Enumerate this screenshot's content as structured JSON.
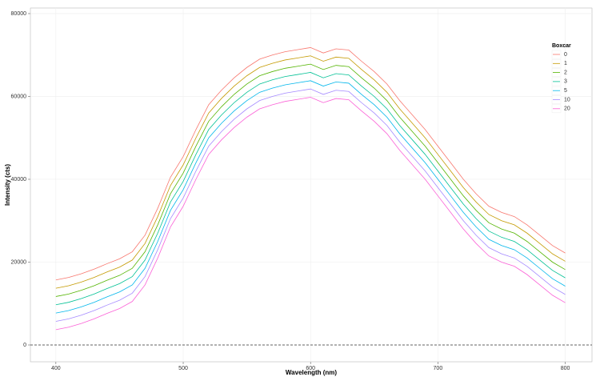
{
  "chart_data": {
    "type": "line",
    "x_label": "Wavelength (nm)",
    "y_label": "Intensity (cts)",
    "legend_title": "Boxcar",
    "x": [
      400,
      410,
      420,
      430,
      440,
      450,
      460,
      470,
      480,
      490,
      500,
      510,
      520,
      530,
      540,
      550,
      560,
      570,
      580,
      590,
      600,
      610,
      620,
      630,
      640,
      650,
      660,
      670,
      680,
      690,
      700,
      710,
      720,
      730,
      740,
      750,
      760,
      770,
      780,
      790,
      800
    ],
    "series": [
      {
        "name": "0",
        "color": "#F8766D",
        "values": [
          15700,
          16300,
          17200,
          18300,
          19600,
          20800,
          22500,
          26500,
          33000,
          40500,
          45500,
          52000,
          58000,
          61500,
          64500,
          67000,
          69000,
          70000,
          70800,
          71300,
          71800,
          70500,
          71500,
          71200,
          68500,
          66000,
          63000,
          59000,
          55500,
          52000,
          48000,
          44000,
          40000,
          36500,
          33500,
          32000,
          31000,
          29000,
          26500,
          24000,
          22200
        ]
      },
      {
        "name": "1",
        "color": "#C49A00",
        "values": [
          13700,
          14300,
          15200,
          16300,
          17600,
          18800,
          20500,
          24500,
          31000,
          38500,
          43500,
          50000,
          56000,
          59500,
          62500,
          65000,
          67000,
          68000,
          68800,
          69300,
          69800,
          68500,
          69500,
          69200,
          66500,
          64000,
          61000,
          57000,
          53500,
          50000,
          46000,
          42000,
          38000,
          34500,
          31500,
          30000,
          29000,
          27000,
          24500,
          22000,
          20200
        ]
      },
      {
        "name": "2",
        "color": "#53B400",
        "values": [
          11700,
          12300,
          13200,
          14300,
          15600,
          16800,
          18500,
          22500,
          29000,
          36500,
          41500,
          48000,
          54000,
          57500,
          60500,
          63000,
          65000,
          66000,
          66800,
          67300,
          67800,
          66500,
          67500,
          67200,
          64500,
          62000,
          59000,
          55000,
          51500,
          48000,
          44000,
          40000,
          36000,
          32500,
          29500,
          28000,
          27000,
          25000,
          22500,
          20000,
          18200
        ]
      },
      {
        "name": "3",
        "color": "#00C094",
        "values": [
          9700,
          10300,
          11200,
          12300,
          13600,
          14800,
          16500,
          20500,
          27000,
          34500,
          39500,
          46000,
          52000,
          55500,
          58500,
          61000,
          63000,
          64000,
          64800,
          65300,
          65800,
          64500,
          65500,
          65200,
          62500,
          60000,
          57000,
          53000,
          49500,
          46000,
          42000,
          38000,
          34000,
          30500,
          27500,
          26000,
          25000,
          23000,
          20500,
          18000,
          16200
        ]
      },
      {
        "name": "5",
        "color": "#00B6EB",
        "values": [
          7700,
          8300,
          9200,
          10300,
          11600,
          12800,
          14500,
          18500,
          25000,
          32500,
          37500,
          44000,
          50000,
          53500,
          56500,
          59000,
          61000,
          62000,
          62800,
          63300,
          63800,
          62500,
          63500,
          63200,
          60500,
          58000,
          55000,
          51000,
          47500,
          44000,
          40000,
          36000,
          32000,
          28500,
          25500,
          24000,
          23000,
          21000,
          18500,
          16000,
          14200
        ]
      },
      {
        "name": "10",
        "color": "#A58AFF",
        "values": [
          5700,
          6300,
          7200,
          8300,
          9600,
          10800,
          12500,
          16500,
          23000,
          30500,
          35500,
          42000,
          48000,
          51500,
          54500,
          57000,
          59000,
          60000,
          60800,
          61300,
          61800,
          60500,
          61500,
          61200,
          58500,
          56000,
          53000,
          49000,
          45500,
          42000,
          38000,
          34000,
          30000,
          26500,
          23500,
          22000,
          21000,
          19000,
          16500,
          14000,
          12200
        ]
      },
      {
        "name": "20",
        "color": "#FB61D7",
        "values": [
          3700,
          4300,
          5200,
          6300,
          7600,
          8800,
          10500,
          14500,
          21000,
          28500,
          33500,
          40000,
          46000,
          49500,
          52500,
          55000,
          57000,
          58000,
          58800,
          59300,
          59800,
          58500,
          59500,
          59200,
          56500,
          54000,
          51000,
          47000,
          43500,
          40000,
          36000,
          32000,
          28000,
          24500,
          21500,
          20000,
          19000,
          17000,
          14500,
          12000,
          10200
        ]
      }
    ],
    "xlim": [
      380,
      821
    ],
    "ylim": [
      -4060,
      81350
    ],
    "xticks": [
      400,
      500,
      600,
      700,
      800
    ],
    "yticks": [
      0,
      20000,
      40000,
      60000,
      80000
    ],
    "hline": 0,
    "grid": true,
    "legend_position": "top-right"
  }
}
